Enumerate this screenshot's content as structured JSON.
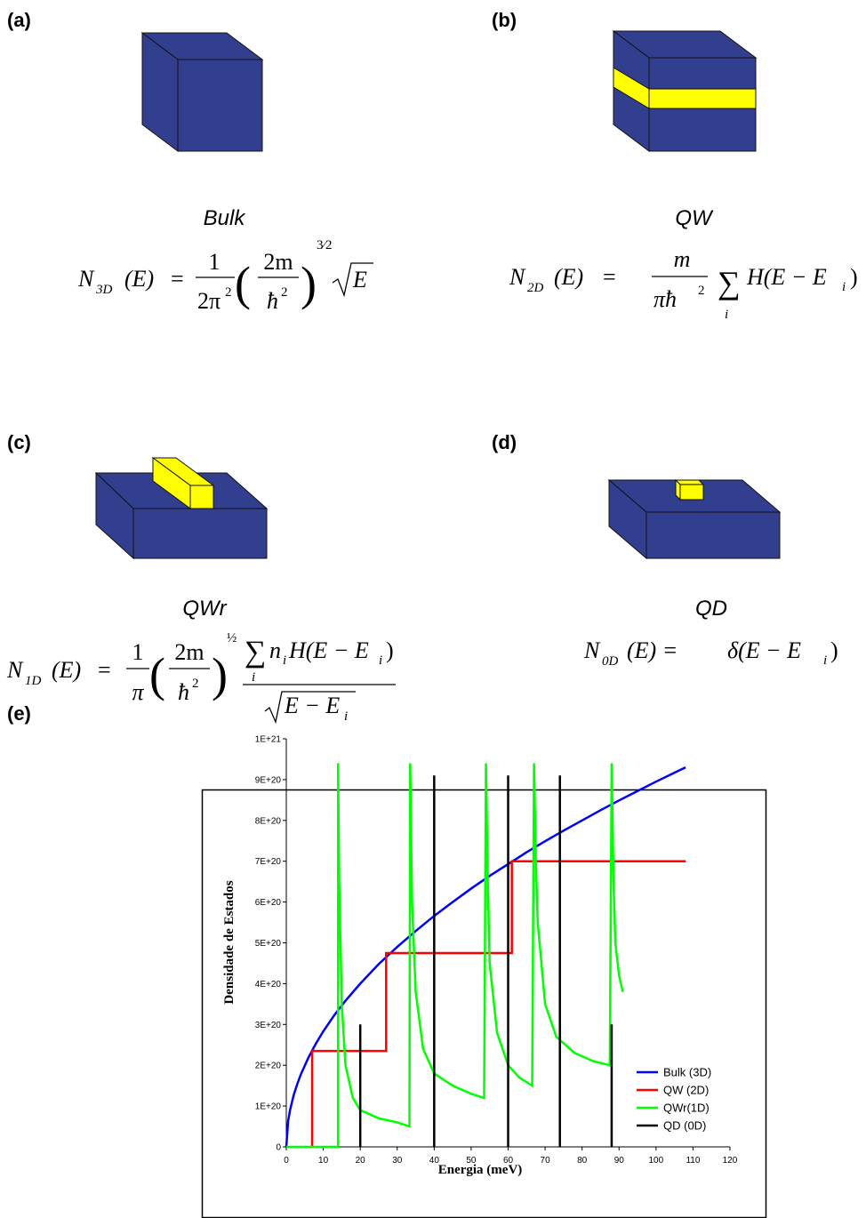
{
  "panels": [
    {
      "label": "(a)",
      "name": "Bulk",
      "formula": [
        "N",
        "3D",
        "(E)",
        "=",
        "1",
        "2π",
        "2",
        "(",
        "2m",
        "ħ",
        "2",
        ")",
        "3⁄2",
        "E"
      ]
    },
    {
      "label": "(b)",
      "name": "QW",
      "formula": [
        "N",
        "2D",
        "(E)",
        "=",
        "m",
        "πħ",
        "2",
        "∑",
        "i",
        "H(E − E",
        "i",
        ")"
      ]
    },
    {
      "label": "(c)",
      "name": "QWr",
      "formula": [
        "N",
        "1D",
        "(E)",
        "=",
        "1",
        "π",
        "(",
        "2m",
        "ħ",
        "2",
        ")",
        "½",
        "∑",
        "i",
        "n",
        "i",
        "H(E − E",
        "i",
        ")",
        "E − E",
        "i"
      ]
    },
    {
      "label": "(d)",
      "name": "QD",
      "formula": [
        "N",
        "0D",
        "(E) =",
        "δ(E − E",
        "i",
        ")"
      ]
    },
    {
      "label": "(e)"
    }
  ],
  "chart_data": {
    "type": "line",
    "x_label": "Energia (meV)",
    "y_label": "Densidade de Estados",
    "legend": "right",
    "xlim": [
      0,
      120
    ],
    "xticks": [
      0,
      10,
      20,
      30,
      40,
      50,
      60,
      70,
      80,
      90,
      100,
      110,
      120
    ],
    "ylim": [
      0,
      1e+21
    ],
    "yticks": [
      0,
      {
        "value": 1e+20,
        "label": "1E+20"
      },
      {
        "value": 2e+20,
        "label": "2E+20"
      },
      {
        "value": 3e+20,
        "label": "3E+20"
      },
      {
        "value": 4e+20,
        "label": "4E+20"
      },
      {
        "value": 5e+20,
        "label": "5E+20"
      },
      {
        "value": 6e+20,
        "label": "6E+20"
      },
      {
        "value": 7e+20,
        "label": "7E+20"
      },
      {
        "value": 8e+20,
        "label": "8E+20"
      },
      {
        "value": 9e+20,
        "label": "9E+20"
      },
      {
        "value": 1e+21,
        "label": "1E+21"
      }
    ],
    "series": [
      {
        "name": "Bulk (3D)",
        "color": "#0000ff",
        "x": [
          0,
          0.5,
          1,
          2,
          3,
          4,
          6,
          8,
          10,
          13,
          16,
          20,
          25,
          30,
          35,
          40,
          45,
          50,
          55,
          60,
          65,
          70,
          75,
          80,
          85,
          90,
          95,
          100,
          105,
          108
        ],
        "values": [
          0,
          6.33e+19,
          8.95e+19,
          1.27e+20,
          1.55e+20,
          1.79e+20,
          2.19e+20,
          2.53e+20,
          2.83e+20,
          3.23e+20,
          3.58e+20,
          4e+20,
          4.48e+20,
          4.9e+20,
          5.29e+20,
          5.66e+20,
          6e+20,
          6.33e+20,
          6.64e+20,
          6.93e+20,
          7.22e+20,
          7.49e+20,
          7.75e+20,
          8e+20,
          8.25e+20,
          8.49e+20,
          8.72e+20,
          8.95e+20,
          9.17e+20,
          9.3e+20
        ]
      },
      {
        "name": "QW (2D)",
        "color": "#ff0000",
        "x": [
          7,
          7,
          27,
          27,
          61,
          61,
          108
        ],
        "values": [
          0,
          2.35e+20,
          2.35e+20,
          4.75e+20,
          4.75e+20,
          7e+20,
          7e+20
        ]
      },
      {
        "name": "QWr(1D)",
        "color": "#00ff00",
        "x": [
          0,
          14,
          14,
          14.3,
          15,
          16,
          18,
          20,
          25,
          30,
          33.3,
          33.5,
          34,
          35,
          37,
          40,
          45,
          50,
          53.5,
          54,
          54.5,
          55,
          57,
          60,
          63,
          66.5,
          67,
          67.5,
          68,
          70,
          73,
          78,
          83,
          87.5,
          88,
          88.5,
          89,
          90,
          91
        ],
        "values": [
          0,
          0,
          9.4e+20,
          6.5e+20,
          3.5e+20,
          2e+20,
          1.2e+20,
          9e+19,
          7e+19,
          6e+19,
          5e+19,
          9.4e+20,
          6e+20,
          3.8e+20,
          2.4e+20,
          1.8e+20,
          1.5e+20,
          1.3e+20,
          1.2e+20,
          9.4e+20,
          6.5e+20,
          4.5e+20,
          2.8e+20,
          2e+20,
          1.7e+20,
          1.5e+20,
          9.4e+20,
          7e+20,
          5.5e+20,
          3.5e+20,
          2.7e+20,
          2.3e+20,
          2.1e+20,
          2e+20,
          9.4e+20,
          6.5e+20,
          5e+20,
          4.2e+20,
          3.8e+20
        ]
      },
      {
        "name": "QD  (0D)",
        "color": "#000000",
        "x": [
          20,
          20,
          20,
          40,
          40,
          40,
          60,
          60,
          60,
          74,
          74,
          74,
          88,
          88
        ],
        "values": [
          0,
          3e+20,
          null,
          0,
          9.1e+20,
          null,
          0,
          9.1e+20,
          null,
          0,
          9.1e+20,
          null,
          0,
          3e+20
        ]
      }
    ]
  }
}
